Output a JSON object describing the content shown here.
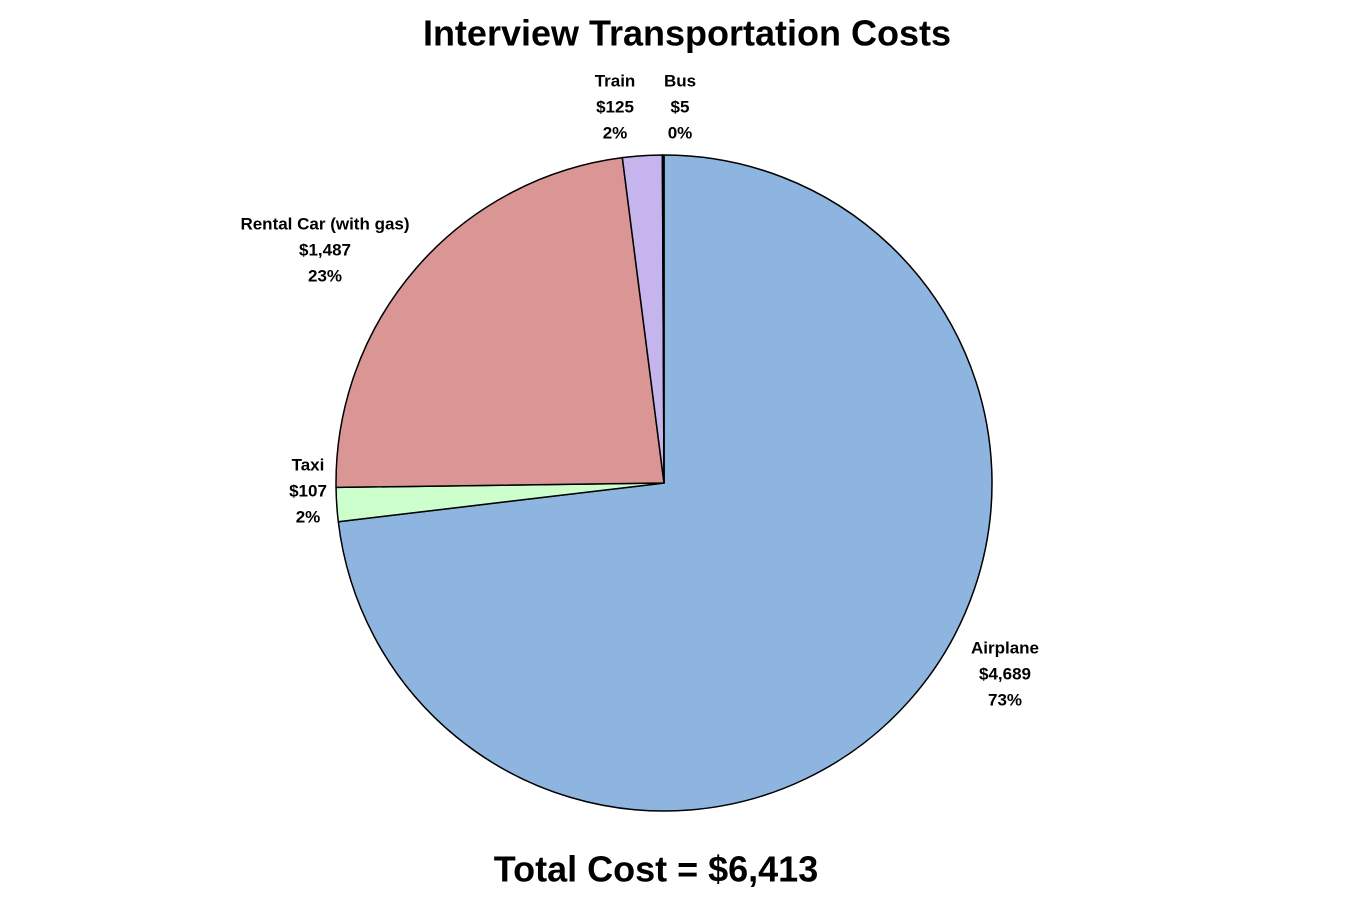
{
  "chart_data": {
    "type": "pie",
    "title": "Interview Transportation Costs",
    "categories": [
      "Airplane",
      "Taxi",
      "Rental Car (with gas)",
      "Train",
      "Bus"
    ],
    "values": [
      4689,
      107,
      1487,
      125,
      5
    ],
    "value_labels": [
      "$4,689",
      "$107",
      "$1,487",
      "$125",
      "$5"
    ],
    "percent_labels": [
      "73%",
      "2%",
      "23%",
      "2%",
      "0%"
    ],
    "colors": [
      "#8eb4e0",
      "#ccffcc",
      "#d99694",
      "#c6b4ec",
      "#1f1f1f"
    ],
    "footer": "Total Cost = $6,413"
  }
}
